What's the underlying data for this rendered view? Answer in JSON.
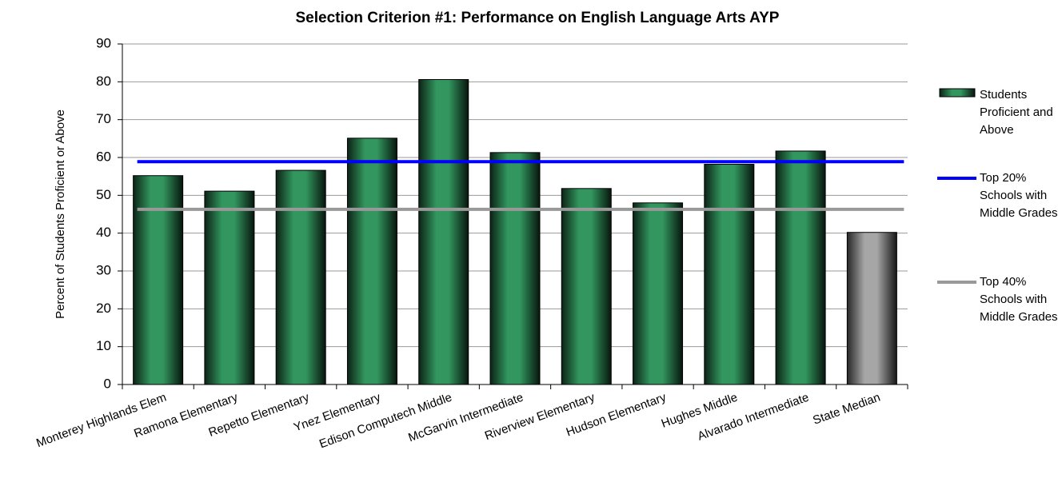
{
  "chart_data": {
    "type": "bar",
    "title": "Selection Criterion #1: Performance on English Language Arts AYP",
    "y_label": "Percent of Students Proficient or Above",
    "categories": [
      "Monterey Highlands Elem",
      "Ramona Elementary",
      "Repetto Elementary",
      "Ynez Elementary",
      "Edison Computech Middle",
      "McGarvin Intermediate",
      "Riverview Elementary",
      "Hudson Elementary",
      "Hughes Middle",
      "Alvarado Intermediate",
      "State Median"
    ],
    "series": [
      {
        "name": "Students Proficient and Above",
        "type": "bar",
        "color": "#2e8b57",
        "colors": [
          "#2e8b57",
          "#2e8b57",
          "#2e8b57",
          "#2e8b57",
          "#2e8b57",
          "#2e8b57",
          "#2e8b57",
          "#2e8b57",
          "#2e8b57",
          "#2e8b57",
          "#9a9a9a"
        ],
        "values": [
          55.2,
          51.1,
          56.6,
          65.1,
          80.6,
          61.3,
          51.8,
          48,
          58.2,
          61.7,
          40.2
        ]
      },
      {
        "name": "Top 20% Schools with Middle Grades",
        "type": "line",
        "color": "#0000ff",
        "value": 58.9
      },
      {
        "name": "Top 40% Schools with Middle Grades",
        "type": "line",
        "color": "#999999",
        "value": 46.3
      }
    ],
    "ylim": [
      0,
      90
    ],
    "yticks": [
      0,
      10,
      20,
      30,
      40,
      50,
      60,
      70,
      80,
      90
    ],
    "grid": true,
    "legend": "right"
  }
}
